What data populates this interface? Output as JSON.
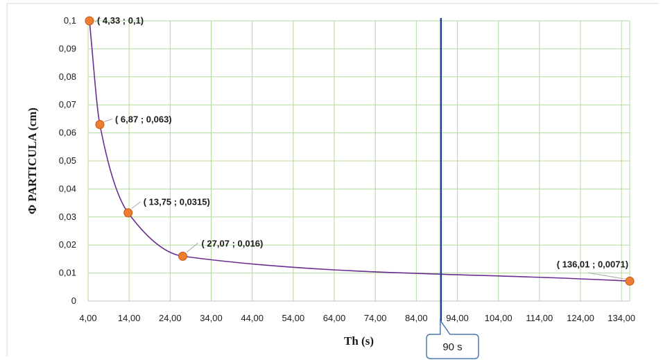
{
  "chart_data": {
    "type": "scatter",
    "xlabel": "Th (s)",
    "ylabel": "Φ PARTICULA  (cm)",
    "xlim": [
      4,
      136
    ],
    "ylim": [
      0,
      0.1
    ],
    "grid": true,
    "x_ticks": [
      "4,00",
      "14,00",
      "24,00",
      "34,00",
      "44,00",
      "54,00",
      "64,00",
      "74,00",
      "84,00",
      "94,00",
      "104,00",
      "114,00",
      "124,00",
      "134,00"
    ],
    "y_ticks": [
      "0",
      "0,01",
      "0,02",
      "0,03",
      "0,04",
      "0,05",
      "0,06",
      "0,07",
      "0,08",
      "0,09",
      "0,1"
    ],
    "points": [
      {
        "x": 4.33,
        "y": 0.1,
        "label": "( 4,33 ; 0,1)"
      },
      {
        "x": 6.87,
        "y": 0.063,
        "label": "( 6,87 ; 0,063)"
      },
      {
        "x": 13.75,
        "y": 0.0315,
        "label": "( 13,75 ; 0,0315)"
      },
      {
        "x": 27.07,
        "y": 0.016,
        "label": "( 27,07 ; 0,016)"
      },
      {
        "x": 136.01,
        "y": 0.0071,
        "label": "( 136,01 ; 0,0071)"
      }
    ],
    "reference_line": {
      "x": 90,
      "label": "90 s"
    },
    "colors": {
      "curve": "#6a2c91",
      "marker": "#ed7d31",
      "marker_edge": "#c55a11",
      "reference_line": "#1f3f8a",
      "grid": "#b5d99c",
      "callout_border": "#4a7ab0"
    }
  }
}
